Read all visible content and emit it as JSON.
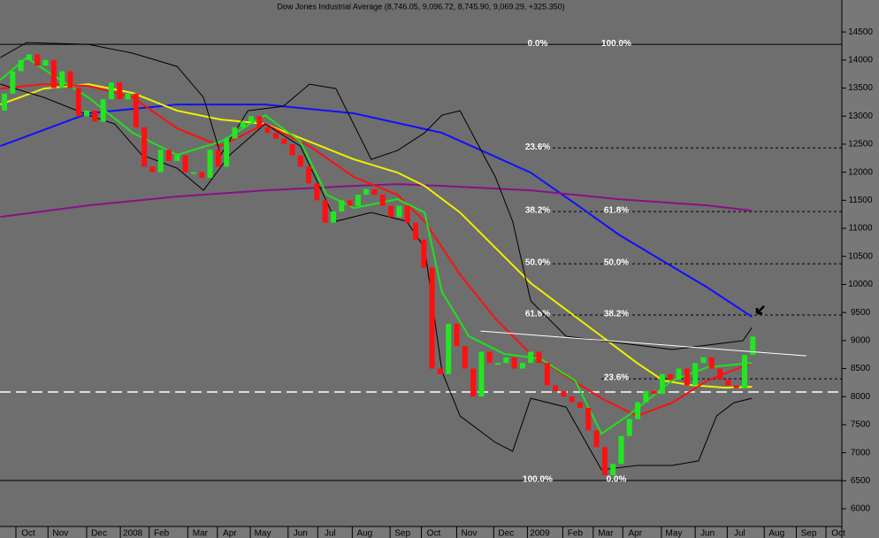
{
  "chart_data": {
    "type": "candlestick",
    "title": "Dow Jones Industrial Average (8,746.05, 9,096.72, 8,745.90, 9,069.29, +325.350)",
    "open": [
      13100,
      13400,
      13800,
      14000,
      14100,
      13900,
      14000,
      13500,
      13800,
      13500,
      13000,
      13100,
      12900,
      13300,
      13600,
      13300,
      13400,
      12800,
      12100,
      12000,
      12400,
      12200,
      12300,
      12000,
      12000,
      11900,
      12400,
      12100,
      12600,
      12800,
      12900,
      13000,
      12800,
      12700,
      12600,
      12500,
      12300,
      12100,
      11800,
      11500,
      11100,
      11300,
      11500,
      11400,
      11600,
      11700,
      11600,
      11400,
      11200,
      11400,
      11100,
      10800,
      10300,
      8500,
      8400,
      9300,
      8900,
      8500,
      8000,
      8800,
      8600,
      8600,
      8700,
      8500,
      8600,
      8800,
      8600,
      8200,
      8100,
      8000,
      7900,
      7800,
      7400,
      7100,
      6600,
      6800,
      7300,
      7600,
      7900,
      8100,
      8050,
      8400,
      8300,
      8500,
      8200,
      8600,
      8700,
      8500,
      8300,
      8200,
      8150,
      8746.05
    ],
    "close": [
      13400,
      13800,
      14000,
      14100,
      13900,
      14000,
      13500,
      13800,
      13500,
      13000,
      13100,
      12900,
      13300,
      13600,
      13300,
      13400,
      12800,
      12100,
      12000,
      12400,
      12200,
      12300,
      12000,
      12000,
      11900,
      12400,
      12100,
      12600,
      12800,
      12900,
      13000,
      12800,
      12700,
      12600,
      12500,
      12300,
      12100,
      11800,
      11500,
      11100,
      11300,
      11500,
      11400,
      11600,
      11700,
      11600,
      11400,
      11200,
      11400,
      11100,
      10800,
      10300,
      8500,
      8400,
      9300,
      8900,
      8500,
      8000,
      8800,
      8600,
      8600,
      8700,
      8500,
      8600,
      8800,
      8600,
      8200,
      8100,
      8000,
      7900,
      7800,
      7400,
      7100,
      6600,
      6800,
      7300,
      7600,
      7900,
      8100,
      8050,
      8400,
      8300,
      8500,
      8200,
      8600,
      8700,
      8500,
      8300,
      8200,
      8150,
      8743.94,
      9069.29
    ],
    "up_color": "#22e622",
    "down_color": "#ff1010",
    "overlays": [
      {
        "color": "#1010ff",
        "x": [
          -0.5,
          10.2,
          21.0,
          31.7,
          42.5,
          53.2,
          64.0,
          69.4,
          74.7,
          80.1,
          85.5,
          90.9
        ],
        "values": [
          12466,
          13049,
          13207,
          13207,
          13049,
          12702,
          11993,
          11441,
          10889,
          10416,
          9943,
          9422
        ]
      },
      {
        "color": "#8a108a",
        "x": [
          -0.5,
          10.2,
          21.0,
          31.7,
          42.5,
          47.8,
          53.2,
          64.0,
          74.7,
          85.5,
          90.9
        ],
        "values": [
          11204,
          11409,
          11567,
          11677,
          11756,
          11788,
          11756,
          11677,
          11520,
          11409,
          11315
        ]
      },
      {
        "color": "#f0f000",
        "x": [
          -0.5,
          4.8,
          10.2,
          15.6,
          21.0,
          26.3,
          31.7,
          37.1,
          42.5,
          47.8,
          51.1,
          55.4,
          59.7,
          64.0,
          68.3,
          72.6,
          76.9,
          80.1,
          83.3,
          87.6,
          90.9
        ],
        "values": [
          13207,
          13491,
          13570,
          13412,
          13097,
          12939,
          12860,
          12545,
          12230,
          11994,
          11756,
          11283,
          10652,
          10022,
          9549,
          9076,
          8602,
          8287,
          8208,
          8160,
          8176
        ]
      },
      {
        "color": "#ff1010",
        "x": [
          -0.5,
          4.8,
          10.2,
          15.6,
          21.0,
          26.3,
          31.7,
          37.1,
          42.5,
          47.8,
          51.1,
          55.4,
          59.7,
          64.0,
          68.3,
          72.6,
          76.9,
          81.2,
          85.5,
          90.9
        ],
        "values": [
          13491,
          13570,
          13538,
          13333,
          12781,
          12466,
          12860,
          12466,
          11914,
          11598,
          11125,
          10179,
          9391,
          8760,
          8366,
          7971,
          7656,
          7892,
          8287,
          8602
        ]
      },
      {
        "color": "#20e020",
        "x": [
          -0.5,
          2.7,
          5.9,
          10.2,
          15.6,
          21.0,
          26.3,
          31.7,
          36.0,
          39.2,
          42.5,
          47.8,
          51.1,
          53.2,
          56.5,
          60.8,
          65.1,
          69.4,
          72.6,
          75.8,
          81.2,
          85.5,
          90.9
        ],
        "values": [
          13648,
          14043,
          13727,
          13333,
          12702,
          12308,
          12545,
          13018,
          12545,
          11598,
          11362,
          11519,
          11283,
          9864,
          9075,
          8760,
          8681,
          8287,
          7340,
          7656,
          8287,
          8523,
          8602
        ]
      },
      {
        "color": "#000000",
        "x": [
          -0.5,
          2.7,
          10.2,
          15.6,
          21.0,
          24.2,
          26.3,
          29.6,
          33.9,
          37.1,
          40.3,
          44.6,
          47.8,
          51.1,
          53.2,
          55.4,
          59.7,
          61.8,
          64.0,
          68.3,
          72.6,
          76.9,
          81.2,
          85.5,
          89.8,
          90.9
        ],
        "values": [
          14043,
          14311,
          14279,
          14122,
          13885,
          13333,
          12308,
          13097,
          13176,
          13570,
          13491,
          12230,
          12387,
          12702,
          13018,
          13097,
          11914,
          11125,
          9706,
          9076,
          8997,
          8918,
          8839,
          8918,
          8997,
          9233
        ]
      },
      {
        "color": "#000000",
        "x": [
          -0.5,
          4.8,
          10.2,
          13.4,
          16.7,
          21.0,
          24.2,
          27.4,
          31.7,
          36.0,
          40.3,
          44.6,
          48.9,
          51.1,
          53.2,
          55.4,
          59.7,
          61.8,
          64.0,
          68.3,
          72.6,
          76.9,
          81.2,
          84.4,
          86.6,
          88.7,
          90.9
        ],
        "values": [
          13570,
          13333,
          13018,
          12860,
          12308,
          12072,
          11677,
          12308,
          12860,
          12466,
          11125,
          11283,
          11125,
          10652,
          8445,
          7656,
          7183,
          7025,
          7971,
          7813,
          6695,
          6774,
          6774,
          6853,
          7656,
          7892,
          7971
        ]
      }
    ],
    "trendline": {
      "color": "#ffffff",
      "x": [
        57.9,
        97.5
      ],
      "values": [
        9170,
        8728
      ]
    },
    "support": {
      "color": "#ffffff",
      "value": 8082
    },
    "fibonacci": [
      {
        "value": 14279,
        "left": "0.0%",
        "right": "100.0%",
        "style": "solid"
      },
      {
        "value": 12434,
        "left": "23.6%",
        "style": "dashed"
      },
      {
        "value": 11299,
        "left": "38.2%",
        "right": "61.8%",
        "style": "dashed"
      },
      {
        "value": 10368,
        "left": "50.0%",
        "right": "50.0%",
        "style": "dashed"
      },
      {
        "value": 9454,
        "left": "61.8%",
        "right": "38.2%",
        "style": "dashed"
      },
      {
        "value": 8318,
        "right": "23.6%",
        "style": "dashed"
      },
      {
        "value": 6505,
        "left": "100.0%",
        "right": "0.0%",
        "style": "solid"
      }
    ],
    "ylim": [
      5685,
      15070
    ],
    "yticks": [
      6000,
      6500,
      7000,
      7500,
      8000,
      8500,
      9000,
      9500,
      10000,
      10500,
      11000,
      11500,
      12000,
      12500,
      13000,
      13500,
      14000,
      14500
    ],
    "xlim": [
      -0.54,
      101.83
    ],
    "xticks": [
      {
        "value": 2.9,
        "label": "Oct"
      },
      {
        "value": 6.8,
        "label": "Nov"
      },
      {
        "value": 11.5,
        "label": "Dec"
      },
      {
        "value": 15.6,
        "label": "2008"
      },
      {
        "value": 19.1,
        "label": "Feb"
      },
      {
        "value": 23.8,
        "label": "Mar"
      },
      {
        "value": 27.4,
        "label": "Apr"
      },
      {
        "value": 31.4,
        "label": "May"
      },
      {
        "value": 36.0,
        "label": "Jun"
      },
      {
        "value": 39.6,
        "label": "Jul"
      },
      {
        "value": 43.8,
        "label": "Aug"
      },
      {
        "value": 48.4,
        "label": "Sep"
      },
      {
        "value": 52.2,
        "label": "Oct"
      },
      {
        "value": 56.5,
        "label": "Nov"
      },
      {
        "value": 61.0,
        "label": "Dec"
      },
      {
        "value": 65.1,
        "label": "2009"
      },
      {
        "value": 69.4,
        "label": "Feb"
      },
      {
        "value": 73.1,
        "label": "Mar"
      },
      {
        "value": 76.7,
        "label": "Apr"
      },
      {
        "value": 81.4,
        "label": "May"
      },
      {
        "value": 85.5,
        "label": "Jun"
      },
      {
        "value": 89.4,
        "label": "Jul"
      },
      {
        "value": 93.9,
        "label": "Aug"
      },
      {
        "value": 97.8,
        "label": "Sep"
      },
      {
        "value": 101.4,
        "label": "Oct"
      }
    ]
  }
}
